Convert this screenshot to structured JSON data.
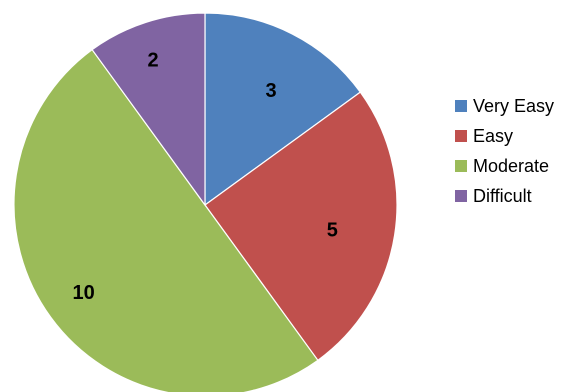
{
  "chart_data": {
    "type": "pie",
    "categories": [
      "Very Easy",
      "Easy",
      "Moderate",
      "Difficult"
    ],
    "values": [
      3,
      5,
      10,
      2
    ],
    "colors": [
      "#4F81BD",
      "#C0504D",
      "#9BBB59",
      "#8064A2"
    ],
    "data_labels": [
      "3",
      "5",
      "10",
      "2"
    ],
    "legend_position": "right",
    "start_angle_deg": 0,
    "direction": "clockwise"
  }
}
